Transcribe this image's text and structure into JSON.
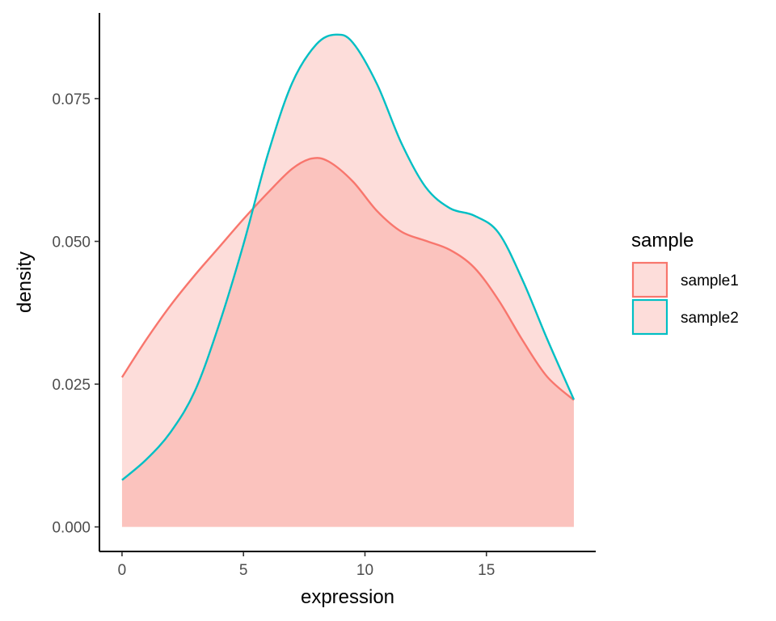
{
  "chart_data": {
    "type": "area",
    "xlabel": "expression",
    "ylabel": "density",
    "xlim": [
      -0.93,
      19.5
    ],
    "ylim": [
      -0.0043,
      0.09
    ],
    "x_ticks": [
      0,
      5,
      10,
      15
    ],
    "x_tick_labels": [
      "0",
      "5",
      "10",
      "15"
    ],
    "y_ticks": [
      0.0,
      0.025,
      0.05,
      0.075
    ],
    "y_tick_labels": [
      "0.000",
      "0.025",
      "0.050",
      "0.075"
    ],
    "grid": false,
    "legend": {
      "title": "sample",
      "position": "right"
    },
    "series": [
      {
        "name": "sample1",
        "color": "#F8766D",
        "fill": "rgba(248,118,109,0.25)",
        "x": [
          0,
          1,
          2,
          3,
          4,
          5,
          6,
          7,
          7.8,
          8.5,
          9.5,
          10.5,
          11.5,
          12.5,
          13.5,
          14.5,
          15.5,
          16.5,
          17.5,
          18.6
        ],
        "y": [
          0.0262,
          0.0328,
          0.0388,
          0.0441,
          0.049,
          0.0539,
          0.0585,
          0.0627,
          0.0645,
          0.064,
          0.0605,
          0.0553,
          0.0517,
          0.0501,
          0.0485,
          0.0454,
          0.0397,
          0.0326,
          0.0263,
          0.0222
        ]
      },
      {
        "name": "sample2",
        "color": "#00BFC4",
        "fill": "rgba(248,118,109,0.25)",
        "x": [
          0,
          1,
          2,
          3,
          4,
          5,
          6,
          7,
          8,
          8.8,
          9.5,
          10.5,
          11.5,
          12.5,
          13.5,
          14.5,
          15.5,
          16.5,
          17.5,
          18.6
        ],
        "y": [
          0.0082,
          0.0118,
          0.0166,
          0.0238,
          0.0355,
          0.0495,
          0.0652,
          0.0777,
          0.0845,
          0.0862,
          0.0848,
          0.0775,
          0.0672,
          0.0595,
          0.0558,
          0.0545,
          0.0515,
          0.0431,
          0.0329,
          0.0223
        ]
      }
    ]
  }
}
